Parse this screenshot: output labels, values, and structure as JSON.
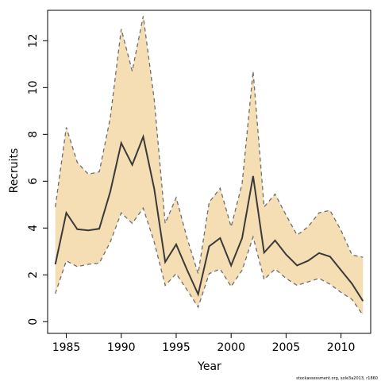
{
  "chart_data": {
    "type": "area",
    "xlabel": "Year",
    "ylabel": "Recruits",
    "xlim": [
      1983.3,
      2012.7
    ],
    "ylim": [
      -0.5,
      13.3
    ],
    "xticks": [
      1985,
      1990,
      1995,
      2000,
      2005,
      2010
    ],
    "yticks": [
      0,
      2,
      4,
      6,
      8,
      10,
      12
    ],
    "grid": false,
    "legend": "none",
    "colors": {
      "band": "#f5deb3",
      "line": "#3a3a3a",
      "bound": "#6e6e6e",
      "axis": "#000000"
    },
    "x": [
      1984,
      1985,
      1986,
      1987,
      1988,
      1989,
      1990,
      1991,
      1992,
      1993,
      1994,
      1995,
      1996,
      1997,
      1998,
      1999,
      2000,
      2001,
      2002,
      2003,
      2004,
      2005,
      2006,
      2007,
      2008,
      2009,
      2010,
      2011,
      2012
    ],
    "series": [
      {
        "role": "estimate",
        "values": [
          2.45,
          4.65,
          3.95,
          3.9,
          3.97,
          5.55,
          7.63,
          6.7,
          7.9,
          5.68,
          2.55,
          3.3,
          2.2,
          1.17,
          3.22,
          3.57,
          2.4,
          3.57,
          6.22,
          2.95,
          3.47,
          2.87,
          2.4,
          2.6,
          2.93,
          2.78,
          2.2,
          1.62,
          0.88
        ]
      },
      {
        "role": "upper",
        "values": [
          4.9,
          8.3,
          6.8,
          6.3,
          6.4,
          8.7,
          12.5,
          10.7,
          13.05,
          9.5,
          4.2,
          5.3,
          3.55,
          2.05,
          5.1,
          5.7,
          4.05,
          5.9,
          10.7,
          4.9,
          5.45,
          4.55,
          3.7,
          4.05,
          4.65,
          4.75,
          3.9,
          2.85,
          2.75
        ]
      },
      {
        "role": "lower",
        "values": [
          1.2,
          2.6,
          2.35,
          2.45,
          2.5,
          3.4,
          4.65,
          4.2,
          4.85,
          3.4,
          1.55,
          2.05,
          1.35,
          0.62,
          2.05,
          2.25,
          1.5,
          2.2,
          3.62,
          1.8,
          2.25,
          1.85,
          1.55,
          1.7,
          1.85,
          1.6,
          1.25,
          0.95,
          0.28
        ]
      }
    ]
  },
  "footer": {
    "credit": "stockassessment.org, sole3a2013, r1860"
  }
}
